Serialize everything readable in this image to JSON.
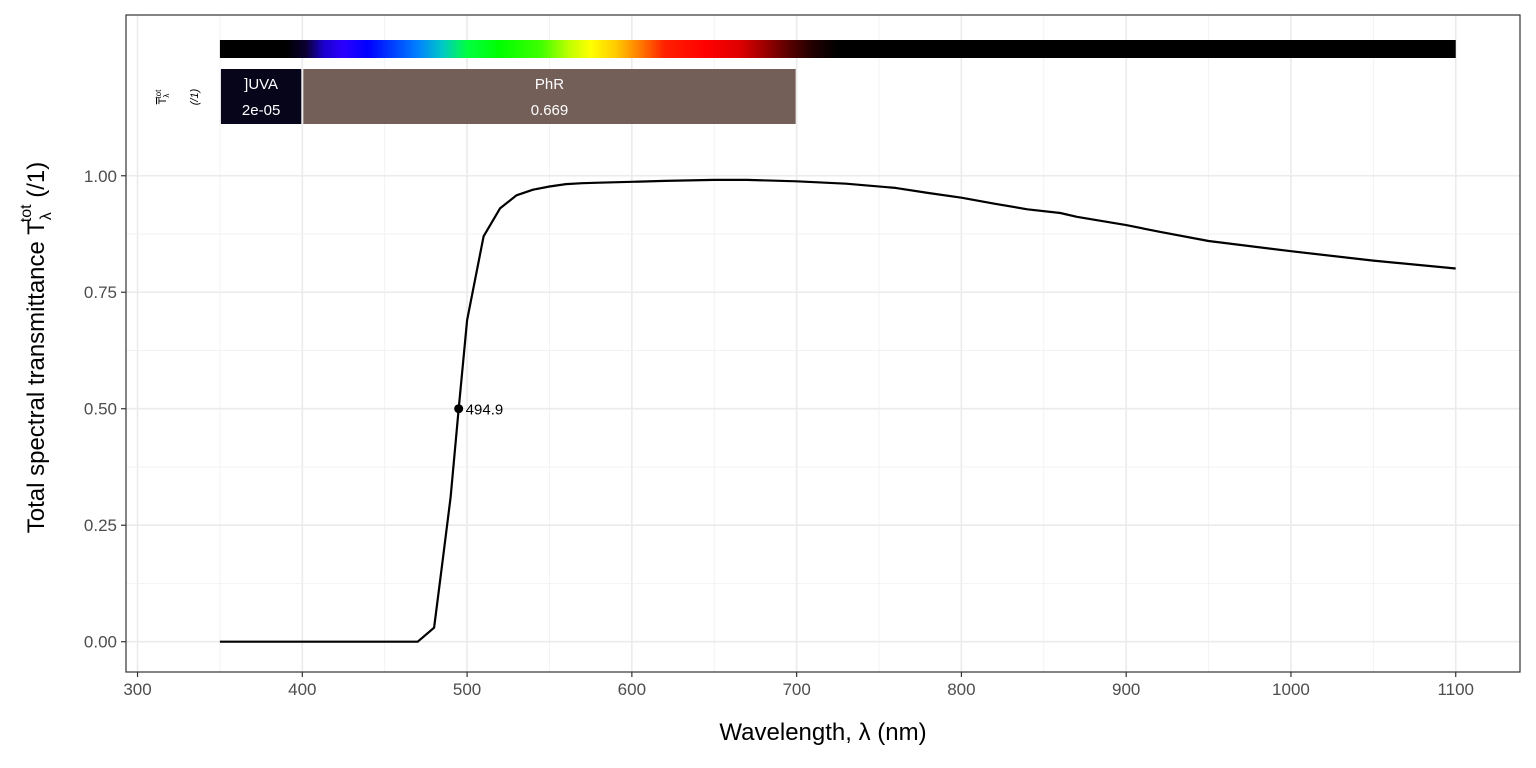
{
  "chart_data": {
    "type": "line",
    "title": "",
    "xlabel": "Wavelength, λ (nm)",
    "ylabel": {
      "prefix": "Total  spectral  transmittance  T",
      "superscript": "tot",
      "subscript": "λ",
      "suffix": "  (/1)"
    },
    "xlim": [
      293,
      1139
    ],
    "ylim": [
      -0.065,
      1.345
    ],
    "x_ticks": [
      300,
      400,
      500,
      600,
      700,
      800,
      900,
      1000,
      1100
    ],
    "y_ticks": [
      {
        "value": 0.0,
        "label": "0.00"
      },
      {
        "value": 0.25,
        "label": "0.25"
      },
      {
        "value": 0.5,
        "label": "0.50"
      },
      {
        "value": 0.75,
        "label": "0.75"
      },
      {
        "value": 1.0,
        "label": "1.00"
      }
    ],
    "grid": true,
    "series": [
      {
        "color": "#000000",
        "x": [
          350,
          400,
          450,
          460,
          470,
          480,
          485,
          490,
          494.9,
          500,
          510,
          520,
          530,
          540,
          550,
          560,
          570,
          580,
          600,
          620,
          650,
          670,
          700,
          730,
          760,
          780,
          800,
          820,
          840,
          860,
          870,
          880,
          900,
          920,
          950,
          1000,
          1050,
          1100
        ],
        "y": [
          0.0,
          0.0,
          0.0,
          0.0,
          0.0,
          0.03,
          0.17,
          0.31,
          0.5,
          0.69,
          0.87,
          0.93,
          0.958,
          0.97,
          0.977,
          0.982,
          0.984,
          0.985,
          0.987,
          0.989,
          0.991,
          0.991,
          0.988,
          0.983,
          0.974,
          0.963,
          0.953,
          0.94,
          0.928,
          0.92,
          0.912,
          0.906,
          0.894,
          0.88,
          0.86,
          0.838,
          0.818,
          0.801
        ]
      }
    ],
    "annotations": [
      {
        "x": 494.9,
        "y": 0.5,
        "label": "494.9"
      }
    ],
    "spectrum_bar": {
      "range": [
        350,
        1100
      ],
      "stops": [
        {
          "nm": 350,
          "color": "#000000"
        },
        {
          "nm": 390,
          "color": "#000000"
        },
        {
          "nm": 402,
          "color": "#0a0030"
        },
        {
          "nm": 413,
          "color": "#1a00cc"
        },
        {
          "nm": 425,
          "color": "#2a00ff"
        },
        {
          "nm": 440,
          "color": "#0000ff"
        },
        {
          "nm": 455,
          "color": "#0040ff"
        },
        {
          "nm": 470,
          "color": "#0080ff"
        },
        {
          "nm": 485,
          "color": "#00c8c8"
        },
        {
          "nm": 500,
          "color": "#00ff40"
        },
        {
          "nm": 520,
          "color": "#00ff00"
        },
        {
          "nm": 545,
          "color": "#40ff00"
        },
        {
          "nm": 562,
          "color": "#c0ff00"
        },
        {
          "nm": 575,
          "color": "#ffff00"
        },
        {
          "nm": 590,
          "color": "#ffcc00"
        },
        {
          "nm": 605,
          "color": "#ff7a00"
        },
        {
          "nm": 620,
          "color": "#ff2000"
        },
        {
          "nm": 645,
          "color": "#ff0000"
        },
        {
          "nm": 665,
          "color": "#e00000"
        },
        {
          "nm": 680,
          "color": "#a00000"
        },
        {
          "nm": 695,
          "color": "#5a0000"
        },
        {
          "nm": 710,
          "color": "#200000"
        },
        {
          "nm": 725,
          "color": "#000000"
        },
        {
          "nm": 1100,
          "color": "#000000"
        }
      ]
    },
    "waveband_summary": {
      "header_main": "T",
      "header_sup": "tot",
      "header_sub": "λ",
      "header_units": "(/1)",
      "bands": [
        {
          "label": "]UVA",
          "value": "2e-05",
          "from": 350,
          "to": 400,
          "color": "#07051a"
        },
        {
          "label": "PhR",
          "value": "0.669",
          "from": 400,
          "to": 700,
          "color": "#735e58"
        }
      ]
    }
  }
}
